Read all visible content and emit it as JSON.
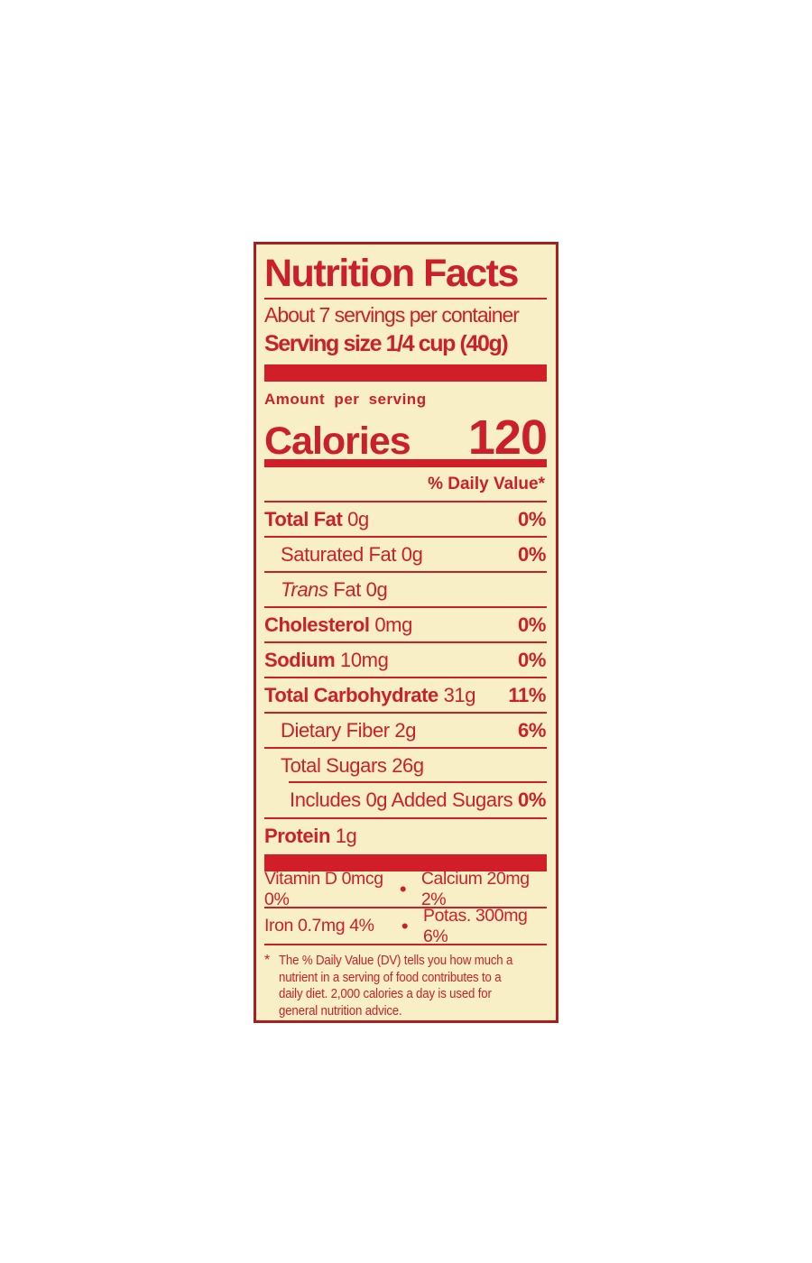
{
  "label": {
    "title": "Nutrition Facts",
    "servings_per_container": "About 7 servings per container",
    "serving_size": "Serving size 1/4 cup (40g)",
    "amount_per_serving": "Amount per serving",
    "calories_label": "Calories",
    "calories_value": "120",
    "daily_value_header": "% Daily Value*",
    "rows": [
      {
        "bold": "Total Fat",
        "text": " 0g",
        "dv": "0%"
      },
      {
        "text": "Saturated Fat 0g",
        "dv": "0%"
      },
      {
        "italic": "Trans",
        "text": " Fat 0g",
        "dv": ""
      },
      {
        "bold": "Cholesterol",
        "text": " 0mg",
        "dv": "0%"
      },
      {
        "bold": "Sodium",
        "text": " 10mg",
        "dv": "0%"
      },
      {
        "bold": "Total Carbohydrate",
        "text": " 31g",
        "dv": "11%"
      },
      {
        "text": "Dietary Fiber 2g",
        "dv": "6%"
      },
      {
        "text": "Total Sugars 26g",
        "dv": ""
      },
      {
        "text": "Includes 0g Added Sugars",
        "dv": "0%"
      },
      {
        "bold": "Protein",
        "text": " 1g",
        "dv": ""
      }
    ],
    "bullet": "•",
    "vitamins": [
      {
        "left": "Vitamin D 0mcg 0%",
        "right": "Calcium 20mg 2%"
      },
      {
        "left": "Iron 0.7mg 4%",
        "right": "Potas. 300mg 6%"
      }
    ],
    "footnote_marker": "*",
    "footnote": "The % Daily Value (DV) tells you how much a nutrient in a serving of food contributes to a daily diet. 2,000 calories a day is used for general nutrition advice."
  },
  "colors": {
    "print_red": "#CB202A",
    "bar_red": "#D21E28",
    "border_red": "#A7201F",
    "label_background": "#F9EFC6",
    "page_background": "#FFFFFF"
  }
}
